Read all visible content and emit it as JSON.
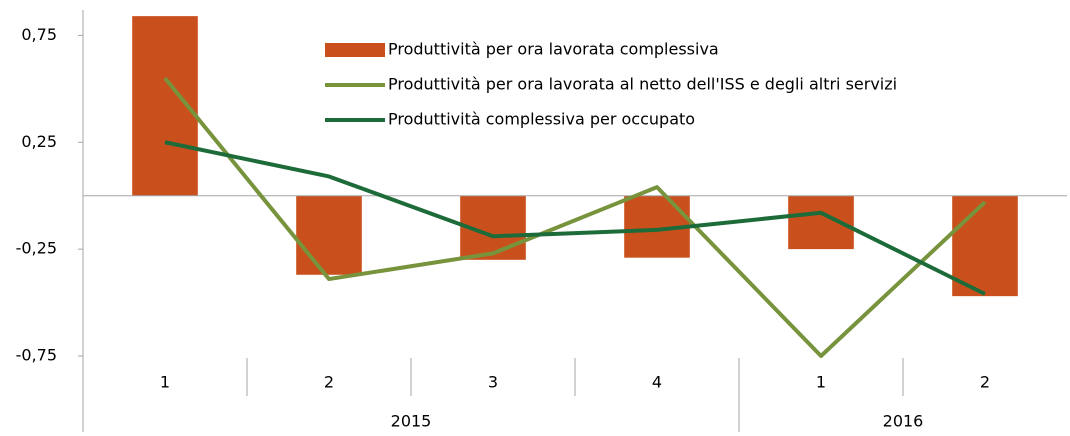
{
  "chart_data": {
    "type": "bar-line",
    "categories": [
      "1",
      "2",
      "3",
      "4",
      "1",
      "2"
    ],
    "category_groups": [
      {
        "name": "2015",
        "count": 4
      },
      {
        "name": "2016",
        "count": 2
      }
    ],
    "series": [
      {
        "name": "Produttività per ora lavorata complessiva",
        "type": "bar",
        "color": "#c9501c",
        "values": [
          0.84,
          -0.37,
          -0.3,
          -0.29,
          -0.25,
          -0.47
        ]
      },
      {
        "name": "Produttività per ora lavorata al netto dell'ISS e degli altri servizi",
        "type": "line",
        "color": "#77933c",
        "values": [
          0.55,
          -0.39,
          -0.27,
          0.04,
          -0.75,
          -0.03
        ]
      },
      {
        "name": "Produttività complessiva per occupato",
        "type": "line",
        "color": "#1e6b3a",
        "values": [
          0.25,
          0.09,
          -0.19,
          -0.16,
          -0.08,
          -0.46
        ]
      }
    ],
    "ylim": [
      -0.75,
      0.85
    ],
    "yticks": [
      {
        "value": -0.75,
        "label": "-0,75"
      },
      {
        "value": -0.25,
        "label": "-0,25"
      },
      {
        "value": 0.25,
        "label": "0,25"
      },
      {
        "value": 0.75,
        "label": "0,75"
      }
    ]
  }
}
